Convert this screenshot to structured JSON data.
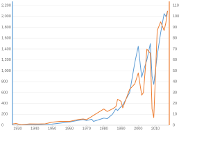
{
  "chart_data": {
    "type": "line",
    "x": [
      1927,
      1929,
      1932,
      1937,
      1942,
      1946,
      1950,
      1955,
      1960,
      1965,
      1968,
      1970,
      1973,
      1974,
      1980,
      1982,
      1985,
      1987,
      1988,
      1990,
      1991,
      1995,
      1998,
      2000,
      2002,
      2003,
      2005,
      2007,
      2008,
      2009,
      2011,
      2013,
      2015,
      2016,
      2017
    ],
    "series": [
      {
        "color": "#5b9bd5",
        "values": [
          17,
          25,
          7,
          15,
          9,
          17,
          20,
          40,
          58,
          88,
          103,
          85,
          110,
          70,
          130,
          120,
          200,
          300,
          270,
          340,
          370,
          600,
          1150,
          1450,
          880,
          1000,
          1200,
          1500,
          900,
          750,
          1280,
          1700,
          2050,
          2000,
          2100
        ]
      },
      {
        "color": "#ed7d31",
        "axis": "y2",
        "values": [
          1.1,
          1.6,
          0.4,
          1.2,
          1.1,
          1.3,
          2.8,
          3.6,
          3.4,
          5.2,
          5.7,
          5.1,
          8,
          9,
          14.9,
          12.6,
          15,
          17,
          23.8,
          22,
          15.9,
          33,
          38,
          48,
          27.6,
          30,
          69.9,
          66.2,
          14.9,
          7,
          87,
          95,
          87,
          94,
          105
        ]
      }
    ],
    "xlim": [
      1927,
      2018
    ],
    "xticks": [
      1930,
      1940,
      1950,
      1960,
      1970,
      1980,
      1990,
      2000,
      2010
    ],
    "ylim": [
      0,
      2200
    ],
    "yticks": [
      0,
      200,
      400,
      600,
      800,
      {
        "value": 1000,
        "label": "1,000"
      },
      {
        "value": 1200,
        "label": "1,200"
      },
      {
        "value": 1400,
        "label": "1,400"
      },
      {
        "value": 1600,
        "label": "1,600"
      },
      {
        "value": 1800,
        "label": "1,800"
      },
      {
        "value": 2000,
        "label": "2,000"
      },
      {
        "value": 2200,
        "label": "2,200"
      }
    ],
    "y2lim": [
      0,
      110
    ],
    "y2ticks": [
      0,
      10,
      20,
      30,
      40,
      50,
      60,
      70,
      80,
      90,
      100,
      110
    ],
    "grid": true
  }
}
